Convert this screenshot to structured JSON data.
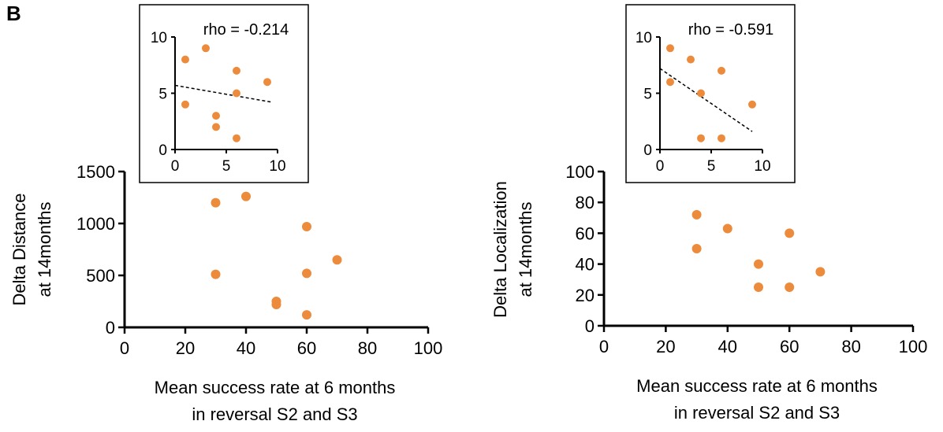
{
  "panel_label": "B",
  "colors": {
    "points": "#ED8B3C",
    "axes": "#000000"
  },
  "chart_data": [
    {
      "type": "scatter",
      "xlabel": [
        "Mean success rate at 6 months",
        "in reversal S2 and S3"
      ],
      "ylabel": [
        "Delta Distance",
        "at 14months"
      ],
      "xlim": [
        0,
        100
      ],
      "ylim": [
        0,
        1500
      ],
      "xticks": [
        "0",
        "20",
        "40",
        "60",
        "80",
        "100"
      ],
      "yticks": [
        "0",
        "500",
        "1000",
        "1500"
      ],
      "grid": false,
      "points": [
        {
          "x": 30,
          "y": 1200
        },
        {
          "x": 40,
          "y": 1260
        },
        {
          "x": 30,
          "y": 510
        },
        {
          "x": 50,
          "y": 250
        },
        {
          "x": 50,
          "y": 220
        },
        {
          "x": 60,
          "y": 970
        },
        {
          "x": 60,
          "y": 520
        },
        {
          "x": 60,
          "y": 120
        },
        {
          "x": 70,
          "y": 650
        }
      ],
      "inset": {
        "type": "scatter",
        "annotation": "rho = -0.214",
        "xlim": [
          0,
          10
        ],
        "ylim": [
          0,
          10
        ],
        "xticks": [
          "0",
          "5",
          "10"
        ],
        "yticks": [
          "0",
          "5",
          "10"
        ],
        "points": [
          {
            "x": 1,
            "y": 8
          },
          {
            "x": 3,
            "y": 9
          },
          {
            "x": 1,
            "y": 4
          },
          {
            "x": 4,
            "y": 3
          },
          {
            "x": 4,
            "y": 2
          },
          {
            "x": 6,
            "y": 7
          },
          {
            "x": 6,
            "y": 5
          },
          {
            "x": 6,
            "y": 1
          },
          {
            "x": 9,
            "y": 6
          }
        ],
        "trendline": {
          "x0": 0,
          "y0": 5.7,
          "x1": 9.5,
          "y1": 4.2
        }
      }
    },
    {
      "type": "scatter",
      "xlabel": [
        "Mean success rate at 6 months",
        "in reversal S2 and S3"
      ],
      "ylabel": [
        "Delta Localization",
        "at 14months"
      ],
      "xlim": [
        0,
        100
      ],
      "ylim": [
        0,
        100
      ],
      "xticks": [
        "0",
        "20",
        "40",
        "60",
        "80",
        "100"
      ],
      "yticks": [
        "0",
        "20",
        "40",
        "60",
        "80",
        "100"
      ],
      "grid": false,
      "points": [
        {
          "x": 30,
          "y": 72
        },
        {
          "x": 30,
          "y": 50
        },
        {
          "x": 40,
          "y": 63
        },
        {
          "x": 50,
          "y": 40
        },
        {
          "x": 50,
          "y": 25
        },
        {
          "x": 60,
          "y": 60
        },
        {
          "x": 60,
          "y": 25
        },
        {
          "x": 70,
          "y": 35
        }
      ],
      "inset": {
        "type": "scatter",
        "annotation": "rho = -0.591",
        "xlim": [
          0,
          10
        ],
        "ylim": [
          0,
          10
        ],
        "xticks": [
          "0",
          "5",
          "10"
        ],
        "yticks": [
          "0",
          "5",
          "10"
        ],
        "points": [
          {
            "x": 1,
            "y": 9
          },
          {
            "x": 3,
            "y": 8
          },
          {
            "x": 1,
            "y": 6
          },
          {
            "x": 4,
            "y": 5
          },
          {
            "x": 6,
            "y": 7
          },
          {
            "x": 9,
            "y": 4
          },
          {
            "x": 4,
            "y": 1
          },
          {
            "x": 6,
            "y": 1
          }
        ],
        "trendline": {
          "x0": 0,
          "y0": 7.2,
          "x1": 9,
          "y1": 1.6
        }
      }
    }
  ]
}
